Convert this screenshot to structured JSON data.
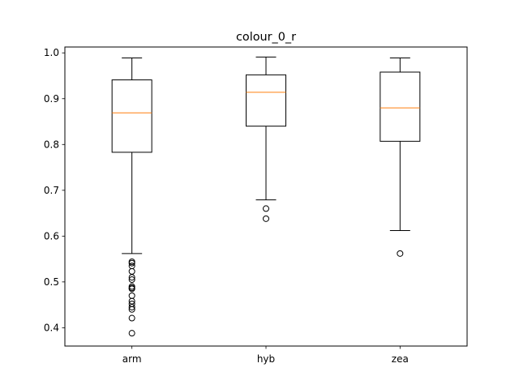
{
  "chart_data": {
    "type": "box",
    "title": "colour_0_r",
    "xlabel": "",
    "ylabel": "",
    "ylim": [
      0.36,
      1.0
    ],
    "yticks": [
      0.4,
      0.5,
      0.6,
      0.7,
      0.8,
      0.9,
      1.0
    ],
    "ytick_labels": [
      "0.4",
      "0.5",
      "0.6",
      "0.7",
      "0.8",
      "0.9",
      "1.0"
    ],
    "categories": [
      "arm",
      "hyb",
      "zea"
    ],
    "grid": false,
    "colors": {
      "box": "#000000",
      "median": "#ff7f0e",
      "flier": "#000000"
    },
    "boxes": [
      {
        "label": "arm",
        "whisker_low": 0.562,
        "q1": 0.783,
        "median": 0.869,
        "q3": 0.941,
        "whisker_high": 0.989,
        "fliers": [
          0.544,
          0.541,
          0.535,
          0.523,
          0.51,
          0.505,
          0.49,
          0.487,
          0.485,
          0.47,
          0.458,
          0.452,
          0.445,
          0.44,
          0.421,
          0.388
        ]
      },
      {
        "label": "hyb",
        "whisker_low": 0.679,
        "q1": 0.84,
        "median": 0.914,
        "q3": 0.952,
        "whisker_high": 0.991,
        "fliers": [
          0.66,
          0.638
        ]
      },
      {
        "label": "zea",
        "whisker_low": 0.612,
        "q1": 0.807,
        "median": 0.88,
        "q3": 0.958,
        "whisker_high": 0.989,
        "fliers": [
          0.562
        ]
      }
    ]
  }
}
